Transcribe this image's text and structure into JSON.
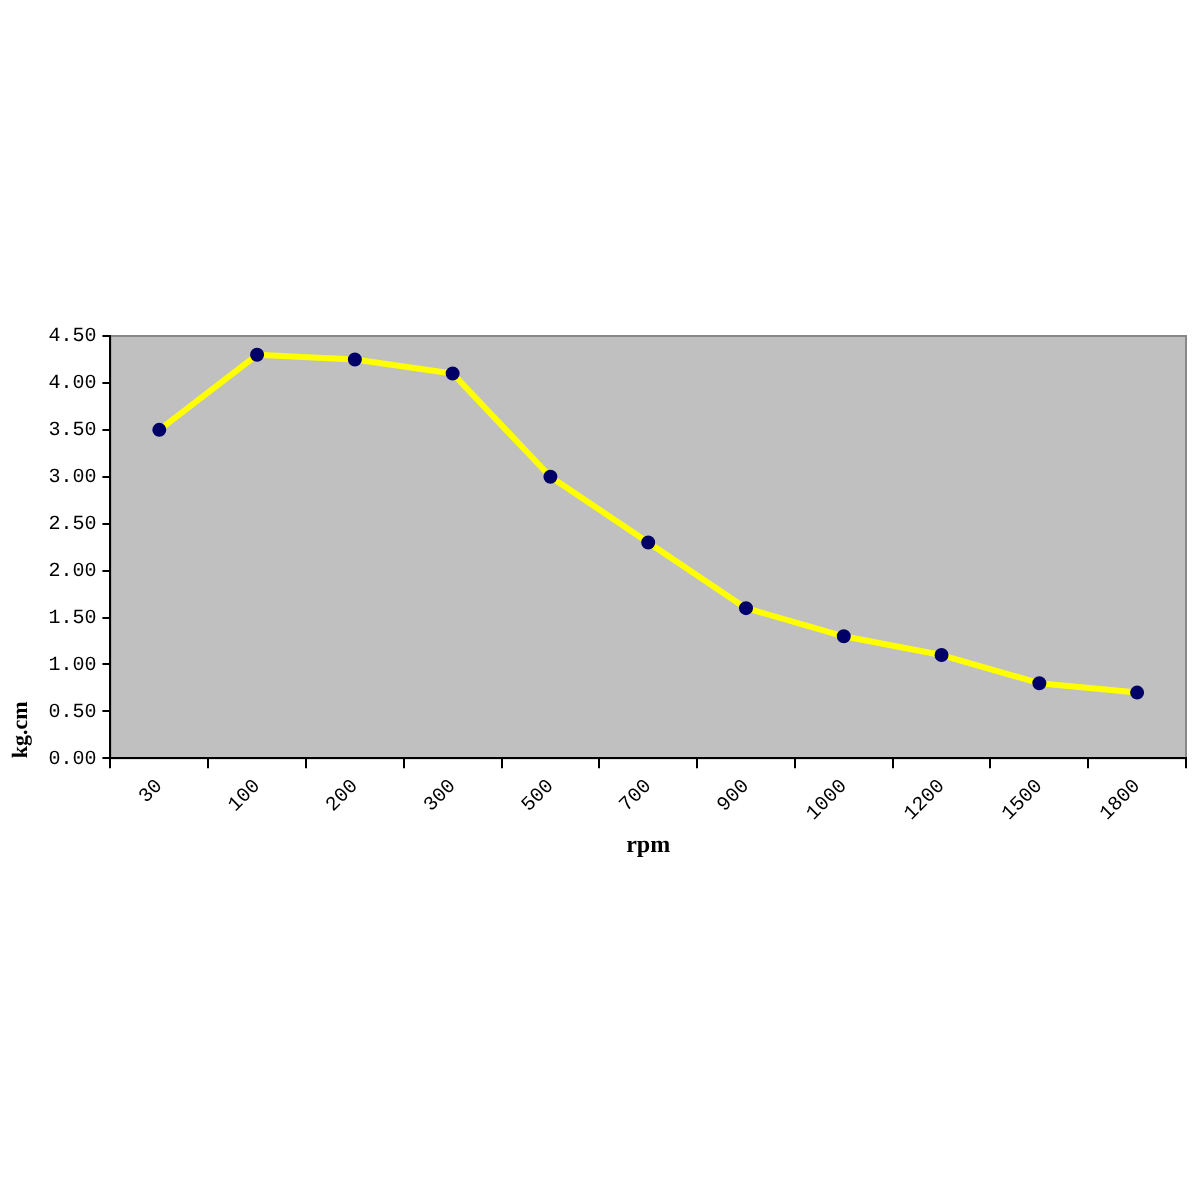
{
  "chart_data": {
    "type": "line",
    "xlabel": "rpm",
    "ylabel": "kg.cm",
    "categories": [
      "30",
      "100",
      "200",
      "300",
      "500",
      "700",
      "900",
      "1000",
      "1200",
      "1500",
      "1800"
    ],
    "series": [
      {
        "color": "#ffff00",
        "values": [
          3.5,
          4.3,
          4.25,
          4.1,
          3.0,
          2.3,
          1.6,
          1.3,
          1.1,
          0.8,
          0.7
        ]
      }
    ],
    "ylim": [
      0,
      4.5
    ],
    "yticks": [
      {
        "value": 0,
        "label": "0.00"
      },
      {
        "value": 0.5,
        "label": "0.50"
      },
      {
        "value": 1,
        "label": "1.00"
      },
      {
        "value": 1.5,
        "label": "1.50"
      },
      {
        "value": 2,
        "label": "2.00"
      },
      {
        "value": 2.5,
        "label": "2.50"
      },
      {
        "value": 3,
        "label": "3.00"
      },
      {
        "value": 3.5,
        "label": "3.50"
      },
      {
        "value": 4,
        "label": "4.00"
      },
      {
        "value": 4.5,
        "label": "4.50"
      }
    ],
    "grid": false,
    "legend": false,
    "marker": "circle",
    "line_style": "solid"
  }
}
